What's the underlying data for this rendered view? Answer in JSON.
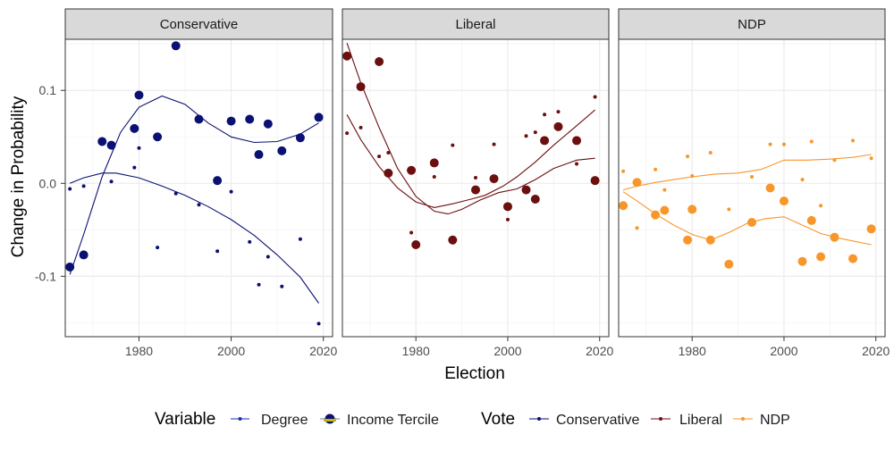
{
  "chart_data": {
    "type": "scatter",
    "xlabel": "Election",
    "ylabel": "Change in Probability",
    "xlim": [
      1964,
      2022
    ],
    "ylim": [
      -0.165,
      0.155
    ],
    "x_ticks": [
      1980,
      2000,
      2020
    ],
    "x_tick_labels": [
      "1980",
      "2000",
      "2020"
    ],
    "y_ticks": [
      -0.1,
      0.0,
      0.1
    ],
    "y_tick_labels": [
      "-0.1",
      "0.0",
      "0.1"
    ],
    "grid": true,
    "legend_position": "bottom",
    "legend": {
      "variable_title": "Variable",
      "variable_items": [
        "Degree",
        "Income Tercile"
      ],
      "vote_title": "Vote",
      "vote_items": [
        "Conservative",
        "Liberal",
        "NDP"
      ]
    },
    "colors": {
      "Conservative": "#0a1172",
      "Liberal": "#6b0f0f",
      "NDP": "#f7962a",
      "strip": "#d9d9d9",
      "grid": "#ebebeb"
    },
    "panels": [
      {
        "strip": "Conservative",
        "vote": "Conservative",
        "series": [
          {
            "name": "Degree",
            "points": [
              {
                "x": 1965,
                "y": -0.006
              },
              {
                "x": 1968,
                "y": -0.003
              },
              {
                "x": 1972,
                "y": 0.046
              },
              {
                "x": 1974,
                "y": 0.002
              },
              {
                "x": 1979,
                "y": 0.017
              },
              {
                "x": 1980,
                "y": 0.038
              },
              {
                "x": 1984,
                "y": -0.069
              },
              {
                "x": 1988,
                "y": -0.011
              },
              {
                "x": 1993,
                "y": -0.023
              },
              {
                "x": 1997,
                "y": -0.073
              },
              {
                "x": 2000,
                "y": -0.009
              },
              {
                "x": 2004,
                "y": -0.063
              },
              {
                "x": 2006,
                "y": -0.109
              },
              {
                "x": 2008,
                "y": -0.079
              },
              {
                "x": 2011,
                "y": -0.111
              },
              {
                "x": 2015,
                "y": -0.06
              },
              {
                "x": 2019,
                "y": -0.151
              }
            ],
            "trend": [
              {
                "x": 1965,
                "y": 0.0
              },
              {
                "x": 1968,
                "y": 0.006
              },
              {
                "x": 1972,
                "y": 0.011
              },
              {
                "x": 1975,
                "y": 0.011
              },
              {
                "x": 1980,
                "y": 0.006
              },
              {
                "x": 1985,
                "y": -0.003
              },
              {
                "x": 1990,
                "y": -0.013
              },
              {
                "x": 1995,
                "y": -0.025
              },
              {
                "x": 2000,
                "y": -0.039
              },
              {
                "x": 2005,
                "y": -0.056
              },
              {
                "x": 2010,
                "y": -0.077
              },
              {
                "x": 2015,
                "y": -0.101
              },
              {
                "x": 2019,
                "y": -0.129
              }
            ]
          },
          {
            "name": "Income Tercile",
            "points": [
              {
                "x": 1965,
                "y": -0.09
              },
              {
                "x": 1968,
                "y": -0.077
              },
              {
                "x": 1972,
                "y": 0.045
              },
              {
                "x": 1974,
                "y": 0.041
              },
              {
                "x": 1979,
                "y": 0.059
              },
              {
                "x": 1980,
                "y": 0.095
              },
              {
                "x": 1984,
                "y": 0.05
              },
              {
                "x": 1988,
                "y": 0.148
              },
              {
                "x": 1993,
                "y": 0.069
              },
              {
                "x": 1997,
                "y": 0.003
              },
              {
                "x": 2000,
                "y": 0.067
              },
              {
                "x": 2004,
                "y": 0.069
              },
              {
                "x": 2006,
                "y": 0.031
              },
              {
                "x": 2008,
                "y": 0.064
              },
              {
                "x": 2011,
                "y": 0.035
              },
              {
                "x": 2015,
                "y": 0.049
              },
              {
                "x": 2019,
                "y": 0.071
              }
            ],
            "trend": [
              {
                "x": 1965,
                "y": -0.098
              },
              {
                "x": 1968,
                "y": -0.055
              },
              {
                "x": 1972,
                "y": 0.007
              },
              {
                "x": 1976,
                "y": 0.055
              },
              {
                "x": 1980,
                "y": 0.082
              },
              {
                "x": 1985,
                "y": 0.094
              },
              {
                "x": 1990,
                "y": 0.085
              },
              {
                "x": 1995,
                "y": 0.065
              },
              {
                "x": 2000,
                "y": 0.05
              },
              {
                "x": 2005,
                "y": 0.044
              },
              {
                "x": 2010,
                "y": 0.045
              },
              {
                "x": 2015,
                "y": 0.053
              },
              {
                "x": 2019,
                "y": 0.065
              }
            ]
          }
        ]
      },
      {
        "strip": "Liberal",
        "vote": "Liberal",
        "series": [
          {
            "name": "Degree",
            "points": [
              {
                "x": 1965,
                "y": 0.054
              },
              {
                "x": 1968,
                "y": 0.06
              },
              {
                "x": 1972,
                "y": 0.029
              },
              {
                "x": 1974,
                "y": 0.033
              },
              {
                "x": 1979,
                "y": -0.053
              },
              {
                "x": 1980,
                "y": -0.066
              },
              {
                "x": 1984,
                "y": 0.007
              },
              {
                "x": 1988,
                "y": 0.041
              },
              {
                "x": 1993,
                "y": 0.006
              },
              {
                "x": 1997,
                "y": 0.042
              },
              {
                "x": 2000,
                "y": -0.039
              },
              {
                "x": 2004,
                "y": 0.051
              },
              {
                "x": 2006,
                "y": 0.055
              },
              {
                "x": 2008,
                "y": 0.074
              },
              {
                "x": 2011,
                "y": 0.077
              },
              {
                "x": 2015,
                "y": 0.021
              },
              {
                "x": 2019,
                "y": 0.093
              }
            ],
            "trend": [
              {
                "x": 1965,
                "y": 0.074
              },
              {
                "x": 1968,
                "y": 0.047
              },
              {
                "x": 1972,
                "y": 0.018
              },
              {
                "x": 1976,
                "y": -0.005
              },
              {
                "x": 1980,
                "y": -0.02
              },
              {
                "x": 1984,
                "y": -0.026
              },
              {
                "x": 1988,
                "y": -0.022
              },
              {
                "x": 1992,
                "y": -0.017
              },
              {
                "x": 1995,
                "y": -0.013
              },
              {
                "x": 1999,
                "y": -0.003
              },
              {
                "x": 2002,
                "y": 0.007
              },
              {
                "x": 2006,
                "y": 0.023
              },
              {
                "x": 2010,
                "y": 0.041
              },
              {
                "x": 2015,
                "y": 0.062
              },
              {
                "x": 2019,
                "y": 0.079
              }
            ]
          },
          {
            "name": "Income Tercile",
            "points": [
              {
                "x": 1965,
                "y": 0.137
              },
              {
                "x": 1968,
                "y": 0.104
              },
              {
                "x": 1972,
                "y": 0.131
              },
              {
                "x": 1974,
                "y": 0.011
              },
              {
                "x": 1979,
                "y": 0.014
              },
              {
                "x": 1980,
                "y": -0.066
              },
              {
                "x": 1984,
                "y": 0.022
              },
              {
                "x": 1988,
                "y": -0.061
              },
              {
                "x": 1993,
                "y": -0.007
              },
              {
                "x": 1997,
                "y": 0.005
              },
              {
                "x": 2000,
                "y": -0.025
              },
              {
                "x": 2004,
                "y": -0.007
              },
              {
                "x": 2006,
                "y": -0.017
              },
              {
                "x": 2008,
                "y": 0.046
              },
              {
                "x": 2011,
                "y": 0.061
              },
              {
                "x": 2015,
                "y": 0.046
              },
              {
                "x": 2019,
                "y": 0.003
              }
            ],
            "trend": [
              {
                "x": 1965,
                "y": 0.151
              },
              {
                "x": 1968,
                "y": 0.108
              },
              {
                "x": 1972,
                "y": 0.06
              },
              {
                "x": 1976,
                "y": 0.016
              },
              {
                "x": 1980,
                "y": -0.014
              },
              {
                "x": 1984,
                "y": -0.03
              },
              {
                "x": 1987,
                "y": -0.033
              },
              {
                "x": 1990,
                "y": -0.028
              },
              {
                "x": 1994,
                "y": -0.018
              },
              {
                "x": 1998,
                "y": -0.01
              },
              {
                "x": 2002,
                "y": -0.006
              },
              {
                "x": 2006,
                "y": 0.004
              },
              {
                "x": 2010,
                "y": 0.016
              },
              {
                "x": 2015,
                "y": 0.025
              },
              {
                "x": 2019,
                "y": 0.027
              }
            ]
          }
        ]
      },
      {
        "strip": "NDP",
        "vote": "NDP",
        "series": [
          {
            "name": "Degree",
            "points": [
              {
                "x": 1965,
                "y": 0.013
              },
              {
                "x": 1968,
                "y": -0.048
              },
              {
                "x": 1972,
                "y": 0.015
              },
              {
                "x": 1974,
                "y": -0.007
              },
              {
                "x": 1979,
                "y": 0.029
              },
              {
                "x": 1980,
                "y": 0.008
              },
              {
                "x": 1984,
                "y": 0.033
              },
              {
                "x": 1988,
                "y": -0.028
              },
              {
                "x": 1993,
                "y": 0.007
              },
              {
                "x": 1997,
                "y": 0.042
              },
              {
                "x": 2000,
                "y": 0.042
              },
              {
                "x": 2004,
                "y": 0.004
              },
              {
                "x": 2006,
                "y": 0.045
              },
              {
                "x": 2008,
                "y": -0.024
              },
              {
                "x": 2011,
                "y": 0.025
              },
              {
                "x": 2015,
                "y": 0.046
              },
              {
                "x": 2019,
                "y": 0.027
              }
            ],
            "trend": [
              {
                "x": 1965,
                "y": -0.007
              },
              {
                "x": 1968,
                "y": -0.003
              },
              {
                "x": 1972,
                "y": 0.001
              },
              {
                "x": 1976,
                "y": 0.004
              },
              {
                "x": 1980,
                "y": 0.007
              },
              {
                "x": 1985,
                "y": 0.01
              },
              {
                "x": 1990,
                "y": 0.011
              },
              {
                "x": 1995,
                "y": 0.015
              },
              {
                "x": 2000,
                "y": 0.025
              },
              {
                "x": 2005,
                "y": 0.025
              },
              {
                "x": 2010,
                "y": 0.026
              },
              {
                "x": 2015,
                "y": 0.028
              },
              {
                "x": 2019,
                "y": 0.031
              }
            ]
          },
          {
            "name": "Income Tercile",
            "points": [
              {
                "x": 1965,
                "y": -0.024
              },
              {
                "x": 1968,
                "y": 0.001
              },
              {
                "x": 1972,
                "y": -0.034
              },
              {
                "x": 1974,
                "y": -0.029
              },
              {
                "x": 1979,
                "y": -0.061
              },
              {
                "x": 1980,
                "y": -0.028
              },
              {
                "x": 1984,
                "y": -0.061
              },
              {
                "x": 1988,
                "y": -0.087
              },
              {
                "x": 1993,
                "y": -0.042
              },
              {
                "x": 1997,
                "y": -0.005
              },
              {
                "x": 2000,
                "y": -0.019
              },
              {
                "x": 2004,
                "y": -0.084
              },
              {
                "x": 2006,
                "y": -0.04
              },
              {
                "x": 2008,
                "y": -0.079
              },
              {
                "x": 2011,
                "y": -0.058
              },
              {
                "x": 2015,
                "y": -0.081
              },
              {
                "x": 2019,
                "y": -0.049
              }
            ],
            "trend": [
              {
                "x": 1965,
                "y": -0.009
              },
              {
                "x": 1968,
                "y": -0.019
              },
              {
                "x": 1972,
                "y": -0.033
              },
              {
                "x": 1976,
                "y": -0.045
              },
              {
                "x": 1980,
                "y": -0.055
              },
              {
                "x": 1984,
                "y": -0.061
              },
              {
                "x": 1988,
                "y": -0.053
              },
              {
                "x": 1992,
                "y": -0.043
              },
              {
                "x": 1996,
                "y": -0.038
              },
              {
                "x": 2000,
                "y": -0.036
              },
              {
                "x": 2004,
                "y": -0.045
              },
              {
                "x": 2008,
                "y": -0.054
              },
              {
                "x": 2012,
                "y": -0.059
              },
              {
                "x": 2016,
                "y": -0.063
              },
              {
                "x": 2019,
                "y": -0.066
              }
            ]
          }
        ]
      }
    ]
  }
}
